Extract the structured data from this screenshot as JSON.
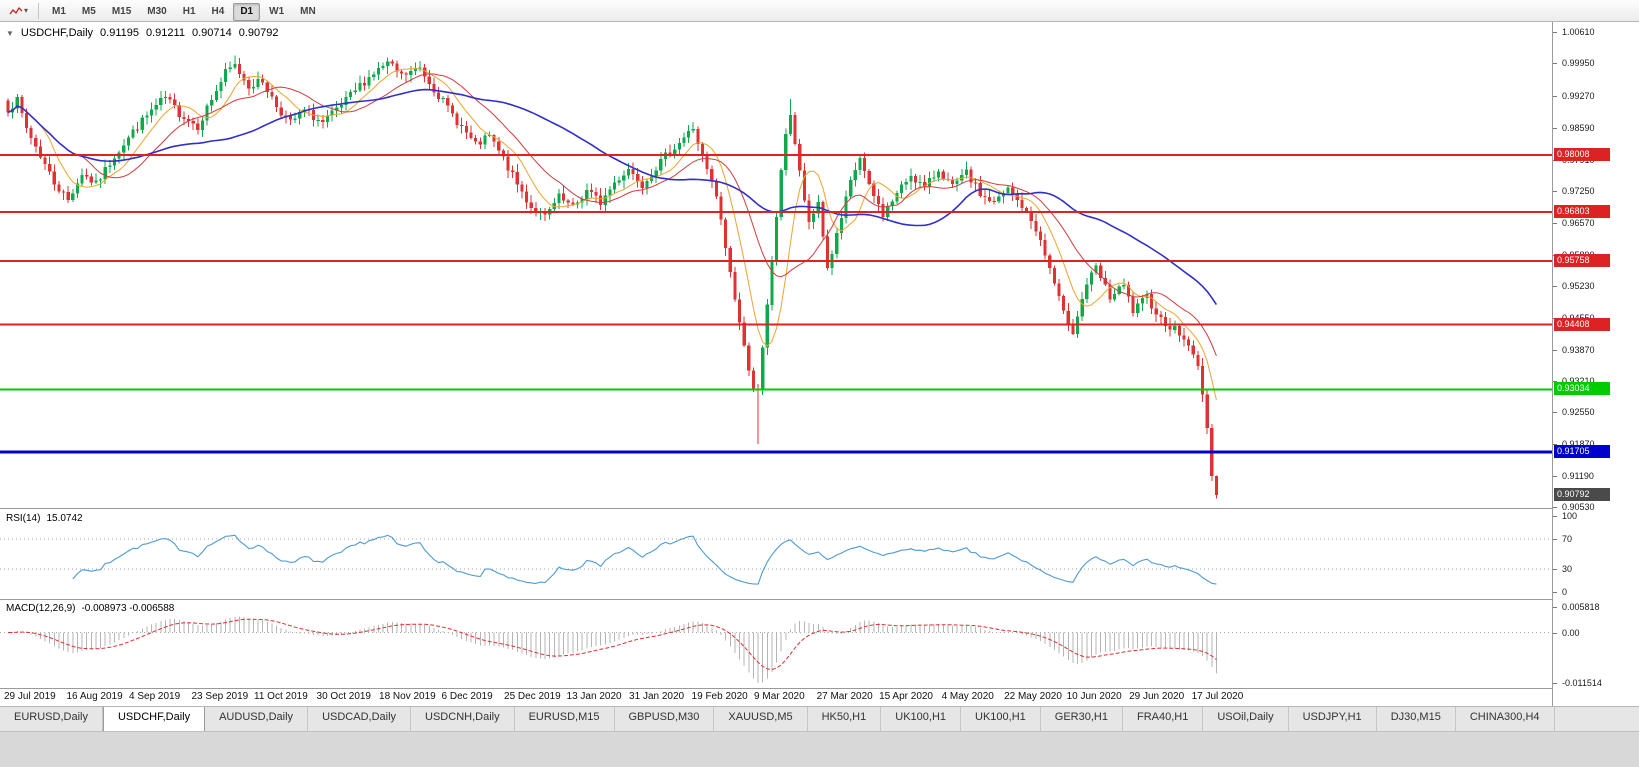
{
  "toolbar": {
    "timeframes": [
      {
        "label": "M1",
        "active": false
      },
      {
        "label": "M5",
        "active": false
      },
      {
        "label": "M15",
        "active": false
      },
      {
        "label": "M30",
        "active": false
      },
      {
        "label": "H1",
        "active": false
      },
      {
        "label": "H4",
        "active": false
      },
      {
        "label": "D1",
        "active": true
      },
      {
        "label": "W1",
        "active": false
      },
      {
        "label": "MN",
        "active": false
      }
    ]
  },
  "icons": {
    "chart_type_dropdown": "▾",
    "info_marker": "▼"
  },
  "chart": {
    "info_line": {
      "symbol": "USDCHF,Daily",
      "open": "0.91195",
      "high": "0.91211",
      "low": "0.90714",
      "close": "0.90792"
    }
  },
  "chart_data": {
    "type": "candlestick",
    "symbol": "USDCHF",
    "timeframe": "Daily",
    "bars": 262,
    "y_range": {
      "pmax": 1.0083,
      "pmin": 0.90516
    },
    "price_axis_ticks": [
      "1.00610",
      "0.99950",
      "0.99270",
      "0.98590",
      "0.97910",
      "0.97250",
      "0.96570",
      "0.95890",
      "0.95230",
      "0.94550",
      "0.93870",
      "0.93210",
      "0.92550",
      "0.91870",
      "0.91190",
      "0.90530"
    ],
    "x_labels": [
      "29 Jul 2019",
      "16 Aug 2019",
      "4 Sep 2019",
      "23 Sep 2019",
      "11 Oct 2019",
      "30 Oct 2019",
      "18 Nov 2019",
      "6 Dec 2019",
      "25 Dec 2019",
      "13 Jan 2020",
      "31 Jan 2020",
      "19 Feb 2020",
      "9 Mar 2020",
      "27 Mar 2020",
      "15 Apr 2020",
      "4 May 2020",
      "22 May 2020",
      "10 Jun 2020",
      "29 Jun 2020",
      "17 Jul 2020"
    ],
    "candle_colors": {
      "up": "#0fa94c",
      "down": "#dd3333"
    },
    "close_anchors": [
      [
        0,
        0.99
      ],
      [
        2,
        0.9915
      ],
      [
        4,
        0.9858
      ],
      [
        7,
        0.98
      ],
      [
        10,
        0.9742
      ],
      [
        13,
        0.9705
      ],
      [
        16,
        0.9762
      ],
      [
        19,
        0.9738
      ],
      [
        23,
        0.98
      ],
      [
        27,
        0.985
      ],
      [
        31,
        0.9895
      ],
      [
        34,
        0.9922
      ],
      [
        37,
        0.989
      ],
      [
        41,
        0.9862
      ],
      [
        44,
        0.992
      ],
      [
        47,
        0.9975
      ],
      [
        49,
        0.999
      ],
      [
        52,
        0.9948
      ],
      [
        55,
        0.9958
      ],
      [
        58,
        0.9905
      ],
      [
        61,
        0.9868
      ],
      [
        64,
        0.9895
      ],
      [
        68,
        0.9868
      ],
      [
        72,
        0.9905
      ],
      [
        76,
        0.9948
      ],
      [
        79,
        0.9975
      ],
      [
        82,
        0.9995
      ],
      [
        85,
        0.9968
      ],
      [
        89,
        0.9985
      ],
      [
        92,
        0.9942
      ],
      [
        95,
        0.99
      ],
      [
        98,
        0.986
      ],
      [
        101,
        0.982
      ],
      [
        104,
        0.984
      ],
      [
        107,
        0.9792
      ],
      [
        110,
        0.9738
      ],
      [
        113,
        0.969
      ],
      [
        116,
        0.9668
      ],
      [
        119,
        0.971
      ],
      [
        122,
        0.9688
      ],
      [
        125,
        0.9725
      ],
      [
        128,
        0.97
      ],
      [
        131,
        0.9742
      ],
      [
        134,
        0.9772
      ],
      [
        137,
        0.974
      ],
      [
        140,
        0.9775
      ],
      [
        143,
        0.9808
      ],
      [
        146,
        0.9838
      ],
      [
        148,
        0.9858
      ],
      [
        150,
        0.9795
      ],
      [
        153,
        0.9712
      ],
      [
        155,
        0.9605
      ],
      [
        157,
        0.9498
      ],
      [
        159,
        0.9392
      ],
      [
        161,
        0.931
      ],
      [
        162,
        0.9295
      ],
      [
        164,
        0.9478
      ],
      [
        166,
        0.9672
      ],
      [
        168,
        0.985
      ],
      [
        169,
        0.9888
      ],
      [
        171,
        0.9762
      ],
      [
        173,
        0.965
      ],
      [
        175,
        0.9702
      ],
      [
        177,
        0.956
      ],
      [
        179,
        0.9628
      ],
      [
        182,
        0.9742
      ],
      [
        184,
        0.9795
      ],
      [
        186,
        0.9732
      ],
      [
        189,
        0.9675
      ],
      [
        192,
        0.9718
      ],
      [
        195,
        0.976
      ],
      [
        198,
        0.973
      ],
      [
        201,
        0.977
      ],
      [
        204,
        0.9732
      ],
      [
        207,
        0.9762
      ],
      [
        210,
        0.9718
      ],
      [
        213,
        0.9698
      ],
      [
        216,
        0.9728
      ],
      [
        219,
        0.9692
      ],
      [
        222,
        0.9645
      ],
      [
        225,
        0.956
      ],
      [
        228,
        0.9462
      ],
      [
        230,
        0.9428
      ],
      [
        233,
        0.9528
      ],
      [
        235,
        0.956
      ],
      [
        238,
        0.9498
      ],
      [
        241,
        0.9522
      ],
      [
        243,
        0.9468
      ],
      [
        246,
        0.95
      ],
      [
        249,
        0.9452
      ],
      [
        252,
        0.943
      ],
      [
        255,
        0.9398
      ],
      [
        257,
        0.9352
      ],
      [
        258,
        0.9295
      ],
      [
        259,
        0.9222
      ],
      [
        260,
        0.912
      ],
      [
        261,
        0.90792
      ]
    ],
    "wick_overrides": {
      "49": {
        "high": 1.0012
      },
      "82": {
        "high": 1.0008
      },
      "162": {
        "low": 0.9187
      },
      "169": {
        "high": 0.992
      },
      "230": {
        "low": 0.9419
      }
    },
    "last_candle": {
      "open": 0.91195,
      "high": 0.91211,
      "low": 0.90714,
      "close": 0.90792
    },
    "moving_averages": [
      {
        "period": 8,
        "color": "#eea42e",
        "width": 1
      },
      {
        "period": 17,
        "color": "#d23c3c",
        "width": 1
      },
      {
        "period": 45,
        "color": "#3030c8",
        "width": 1.6
      }
    ],
    "levels": [
      {
        "value": 0.98008,
        "label": "0.98008",
        "color": "#dd2222",
        "thickness": 2
      },
      {
        "value": 0.96803,
        "label": "0.96803",
        "color": "#dd2222",
        "thickness": 2
      },
      {
        "value": 0.95758,
        "label": "0.95758",
        "color": "#dd2222",
        "thickness": 2
      },
      {
        "value": 0.94408,
        "label": "0.94408",
        "color": "#dd2222",
        "thickness": 2
      },
      {
        "value": 0.93034,
        "label": "0.93034",
        "color": "#00cc00",
        "thickness": 2
      },
      {
        "value": 0.91705,
        "label": "0.91705",
        "color": "#0000cc",
        "thickness": 3
      }
    ],
    "current_price": {
      "value": 0.90792,
      "label": "0.90792",
      "color": "#4a4a4a"
    },
    "rsi": {
      "label": "RSI(14)",
      "value": "15.0742",
      "period": 14,
      "overbought": 70,
      "oversold": 30,
      "axis_ticks": [
        "100",
        "70",
        "30",
        "0"
      ],
      "color": "#4f9ad6"
    },
    "macd": {
      "label": "MACD(12,26,9)",
      "values": "-0.008973 -0.006588",
      "axis_ticks": [
        "0.005818",
        "0.00",
        "-0.011514"
      ],
      "histogram_color": "#b5b5b5",
      "signal_color": "#e03030"
    }
  },
  "tabs": [
    {
      "label": "EURUSD,Daily",
      "active": false
    },
    {
      "label": "USDCHF,Daily",
      "active": true
    },
    {
      "label": "AUDUSD,Daily",
      "active": false
    },
    {
      "label": "USDCAD,Daily",
      "active": false
    },
    {
      "label": "USDCNH,Daily",
      "active": false
    },
    {
      "label": "EURUSD,M15",
      "active": false
    },
    {
      "label": "GBPUSD,M30",
      "active": false
    },
    {
      "label": "XAUUSD,M5",
      "active": false
    },
    {
      "label": "HK50,H1",
      "active": false
    },
    {
      "label": "UK100,H1",
      "active": false
    },
    {
      "label": "UK100,H1",
      "active": false
    },
    {
      "label": "GER30,H1",
      "active": false
    },
    {
      "label": "FRA40,H1",
      "active": false
    },
    {
      "label": "USOil,Daily",
      "active": false
    },
    {
      "label": "USDJPY,H1",
      "active": false
    },
    {
      "label": "DJ30,M15",
      "active": false
    },
    {
      "label": "CHINA300,H4",
      "active": false
    }
  ]
}
